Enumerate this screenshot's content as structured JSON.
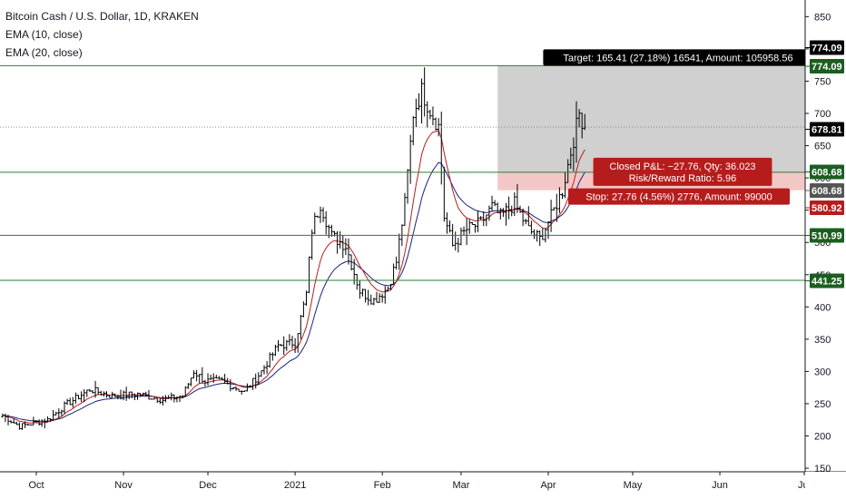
{
  "legend": {
    "symbol": "Bitcoin Cash / U.S. Dollar, 1D, KRAKEN",
    "ema10": "EMA (10, close)",
    "ema20": "EMA (20, close)"
  },
  "colors": {
    "background": "#ffffff",
    "candle": "#000000",
    "ema10": "#b71c1c",
    "ema20": "#1a237e",
    "hline": "#2e7d32",
    "lastPriceLine": "#787b86",
    "target_zone": "#c8c8c8",
    "stop_zone": "#f4c7c7",
    "tag_green": "#1b5e20",
    "tag_red": "#b71c1c",
    "tag_black": "#000000",
    "tag_gray": "#555555"
  },
  "chart_data": {
    "type": "candlestick",
    "title": "Bitcoin Cash / U.S. Dollar, 1D, KRAKEN",
    "xlabel": "",
    "ylabel": "",
    "ylim": [
      140,
      880
    ],
    "y_ticks": [
      150,
      200,
      250,
      300,
      350,
      400,
      450,
      500,
      550,
      600,
      650,
      700,
      750,
      800,
      850
    ],
    "x_ticks": [
      "Oct",
      "Nov",
      "Dec",
      "2021",
      "Feb",
      "Mar",
      "Apr",
      "May",
      "Jun",
      "Jul"
    ],
    "grid": false,
    "series_anchors_close": [
      [
        "2020-09-19",
        232
      ],
      [
        "2020-09-25",
        215
      ],
      [
        "2020-10-05",
        225
      ],
      [
        "2020-10-12",
        250
      ],
      [
        "2020-10-20",
        272
      ],
      [
        "2020-10-28",
        262
      ],
      [
        "2020-11-06",
        265
      ],
      [
        "2020-11-15",
        256
      ],
      [
        "2020-11-22",
        262
      ],
      [
        "2020-11-26",
        300
      ],
      [
        "2020-11-30",
        285
      ],
      [
        "2020-12-06",
        285
      ],
      [
        "2020-12-14",
        268
      ],
      [
        "2020-12-20",
        300
      ],
      [
        "2020-12-26",
        340
      ],
      [
        "2021-01-01",
        345
      ],
      [
        "2021-01-05",
        420
      ],
      [
        "2021-01-07",
        520
      ],
      [
        "2021-01-10",
        560
      ],
      [
        "2021-01-14",
        510
      ],
      [
        "2021-01-19",
        495
      ],
      [
        "2021-01-24",
        425
      ],
      [
        "2021-01-29",
        410
      ],
      [
        "2021-02-03",
        430
      ],
      [
        "2021-02-06",
        470
      ],
      [
        "2021-02-09",
        560
      ],
      [
        "2021-02-12",
        700
      ],
      [
        "2021-02-15",
        735
      ],
      [
        "2021-02-18",
        705
      ],
      [
        "2021-02-21",
        680
      ],
      [
        "2021-02-23",
        540
      ],
      [
        "2021-02-26",
        495
      ],
      [
        "2021-03-03",
        520
      ],
      [
        "2021-03-08",
        530
      ],
      [
        "2021-03-12",
        555
      ],
      [
        "2021-03-15",
        540
      ],
      [
        "2021-03-20",
        560
      ],
      [
        "2021-03-25",
        520
      ],
      [
        "2021-03-29",
        505
      ],
      [
        "2021-04-02",
        540
      ],
      [
        "2021-04-06",
        580
      ],
      [
        "2021-04-09",
        640
      ],
      [
        "2021-04-12",
        700
      ],
      [
        "2021-04-14",
        678.81
      ]
    ],
    "last_price": 678.81,
    "horizontal_levels": [
      774.09,
      608.68,
      510.99,
      441.25
    ],
    "price_tags": [
      {
        "label": "774.09",
        "style": "black"
      },
      {
        "label": "774.09",
        "style": "green"
      },
      {
        "label": "678.81",
        "style": "black"
      },
      {
        "label": "608.68",
        "style": "green"
      },
      {
        "label": "608.68",
        "style": "gray"
      },
      {
        "label": "580.92",
        "style": "red"
      },
      {
        "label": "510.99",
        "style": "green"
      },
      {
        "label": "441.25",
        "style": "green"
      }
    ],
    "position": {
      "type": "long",
      "entry": 608.68,
      "target": 774.09,
      "stop": 580.92,
      "start_date": "2021-03-14",
      "target_label": "Target: 165.41 (27.18%) 16541, Amount: 105958.56",
      "closed_label_1": "Closed P&L: −27.76, Qty: 36.023",
      "closed_label_2": "Risk/Reward Ratio: 5.96",
      "stop_label": "Stop: 27.76 (4.56%) 2776, Amount: 99000"
    }
  }
}
